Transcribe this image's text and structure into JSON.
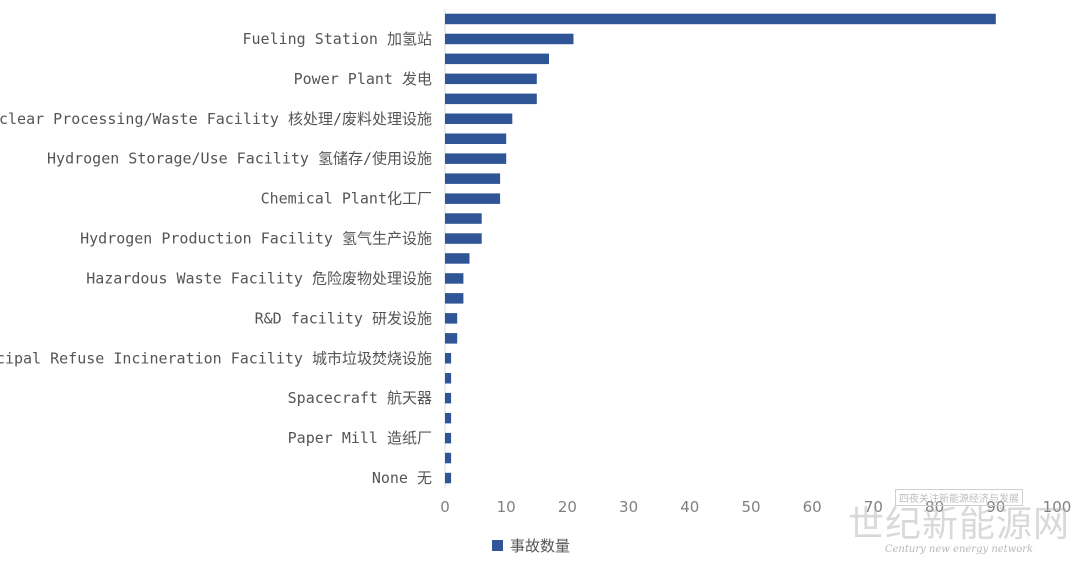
{
  "chart_data": {
    "type": "bar",
    "orientation": "horizontal",
    "bar_values": [
      90,
      21,
      17,
      15,
      15,
      11,
      10,
      10,
      9,
      9,
      6,
      6,
      4,
      3,
      3,
      2,
      2,
      1,
      1,
      1,
      1,
      1,
      1,
      1
    ],
    "category_labels": [
      "Fueling Station 加氢站",
      "Power Plant 发电",
      "Nuclear Processing/Waste Facility 核处理/废料处理设施",
      "Hydrogen Storage/Use Facility 氢储存/使用设施",
      "Chemical Plant化工厂",
      "Hydrogen Production Facility 氢气生产设施",
      "Hazardous Waste Facility 危险废物处理设施",
      "R&D facility 研发设施",
      "nicipal Refuse Incineration Facility 城市垃圾焚烧设施",
      "Spacecraft 航天器",
      "Paper Mill 造纸厂",
      "None 无"
    ],
    "x_ticks": [
      "0",
      "10",
      "20",
      "30",
      "40",
      "50",
      "60",
      "70",
      "80",
      "90",
      "100"
    ],
    "xlim": [
      0,
      100
    ],
    "legend": {
      "name": "事故数量",
      "position": "bottom"
    },
    "bar_color": "#2f5597",
    "grid": false
  },
  "watermark": {
    "top": "四夜关注新能源经济与发展",
    "main": "世纪新能源网",
    "sub": "Century new energy network"
  }
}
